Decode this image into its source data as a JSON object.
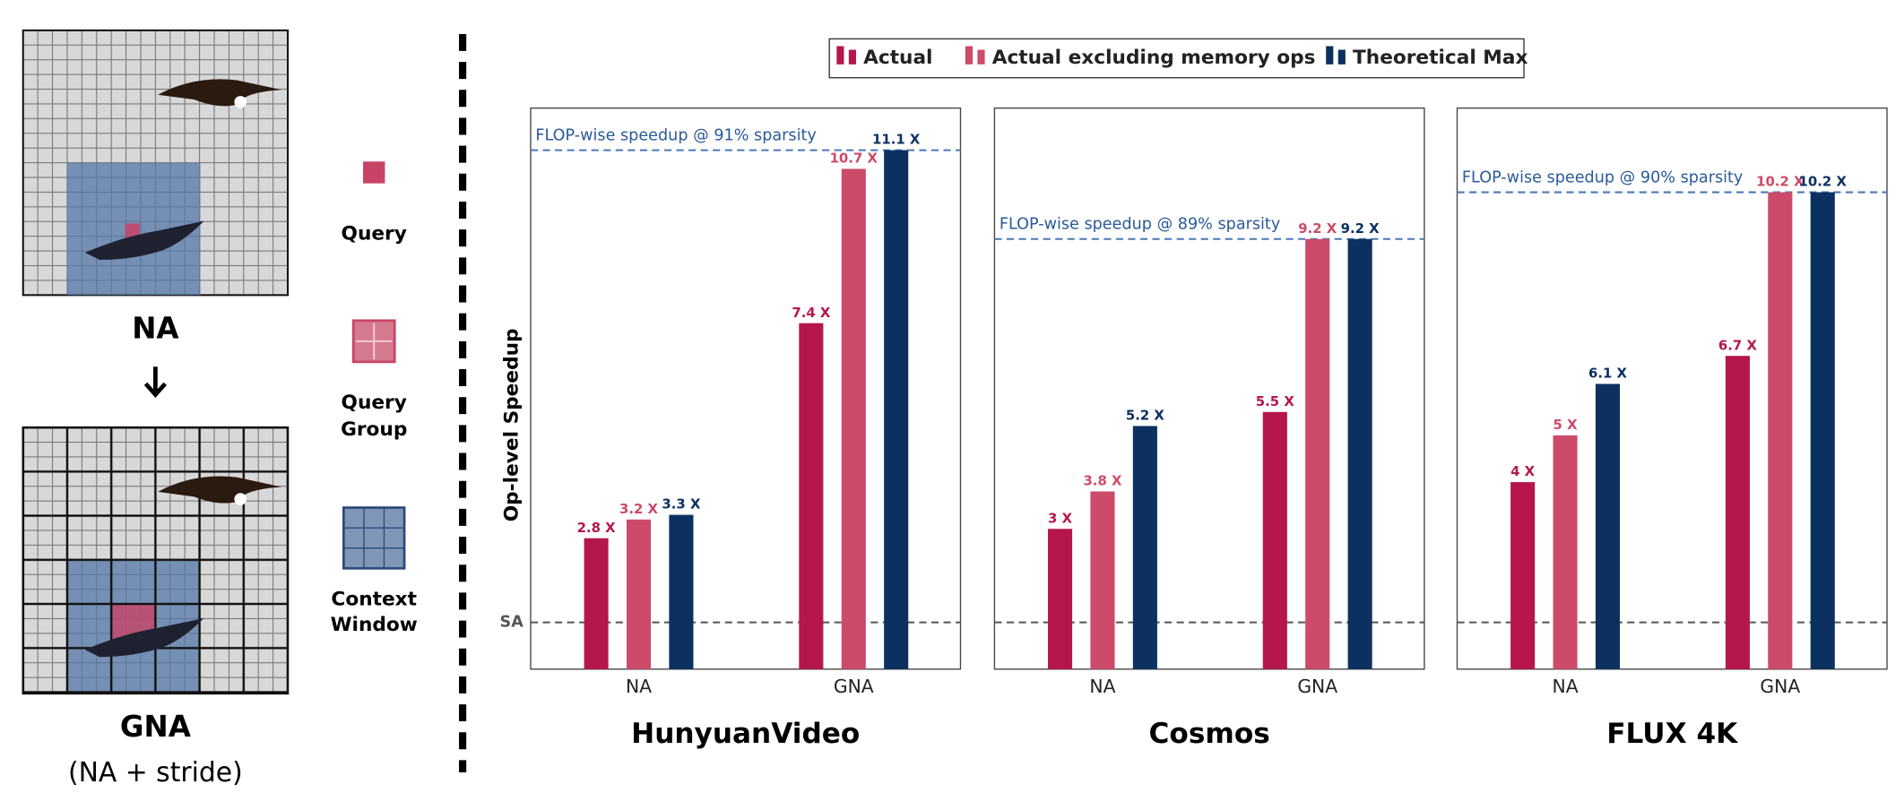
{
  "diagram": {
    "top_label": "NA",
    "bottom_label": "GNA",
    "bottom_sublabel": "(NA + stride)",
    "query": "Query",
    "query_group": [
      "Query",
      "Group"
    ],
    "context_window": [
      "Context",
      "Window"
    ]
  },
  "chart_data": [
    {
      "type": "bar",
      "title": "HunyuanVideo",
      "ylabel": "Op-level Speedup",
      "categories": [
        "NA",
        "GNA"
      ],
      "ylim": [
        0,
        12
      ],
      "yticks": [
        {
          "value": 1,
          "label": "SA"
        }
      ],
      "baseline": 1,
      "flop_line": {
        "value": 11.1,
        "label": "FLOP-wise speedup @ 91% sparsity"
      },
      "series": [
        {
          "name": "Actual",
          "color": "#b5174a",
          "values": [
            2.8,
            7.4
          ],
          "value_labels": [
            "2.8 X",
            "7.4 X"
          ]
        },
        {
          "name": "Actual excluding memory ops",
          "color": "#cc4b6a",
          "values": [
            3.2,
            10.7
          ],
          "value_labels": [
            "3.2 X",
            "10.7 X"
          ]
        },
        {
          "name": "Theoretical Max",
          "color": "#0c3060",
          "values": [
            3.3,
            11.1
          ],
          "value_labels": [
            "3.3 X",
            "11.1 X"
          ]
        }
      ]
    },
    {
      "type": "bar",
      "title": "Cosmos",
      "categories": [
        "NA",
        "GNA"
      ],
      "ylim": [
        0,
        12
      ],
      "baseline": 1,
      "flop_line": {
        "value": 9.2,
        "label": "FLOP-wise speedup @ 89% sparsity"
      },
      "series": [
        {
          "color": "#b5174a",
          "values": [
            3,
            5.5
          ],
          "value_labels": [
            "3 X",
            "5.5 X"
          ]
        },
        {
          "color": "#cc4b6a",
          "values": [
            3.8,
            9.2
          ],
          "value_labels": [
            "3.8 X",
            "9.2 X"
          ]
        },
        {
          "color": "#0c3060",
          "values": [
            5.2,
            9.2
          ],
          "value_labels": [
            "5.2 X",
            "9.2 X"
          ]
        }
      ]
    },
    {
      "type": "bar",
      "title": "FLUX 4K",
      "categories": [
        "NA",
        "GNA"
      ],
      "ylim": [
        0,
        12
      ],
      "baseline": 1,
      "flop_line": {
        "value": 10.2,
        "label": "FLOP-wise speedup @ 90% sparsity"
      },
      "series": [
        {
          "color": "#b5174a",
          "values": [
            4,
            6.7
          ],
          "value_labels": [
            "4 X",
            "6.7 X"
          ]
        },
        {
          "color": "#cc4b6a",
          "values": [
            5,
            10.2
          ],
          "value_labels": [
            "5 X",
            "10.2 X"
          ]
        },
        {
          "color": "#0c3060",
          "values": [
            6.1,
            10.2
          ],
          "value_labels": [
            "6.1 X",
            "10.2 X"
          ]
        }
      ]
    }
  ]
}
